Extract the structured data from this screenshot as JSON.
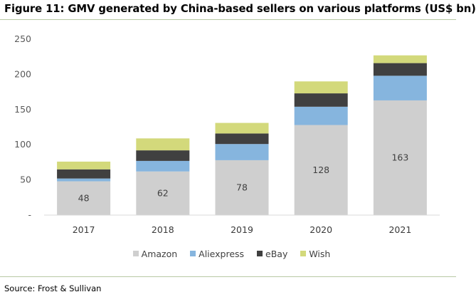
{
  "title": "Figure 11: GMV generated by China-based sellers on various platforms (US$ bn)",
  "source": "Source: Frost & Sullivan",
  "colors": {
    "Amazon": "#cfcfcf",
    "Aliexpress": "#86b5de",
    "eBay": "#404040",
    "Wish": "#d3d97b"
  },
  "chart_data": {
    "type": "bar",
    "stacked": true,
    "categories": [
      "2017",
      "2018",
      "2019",
      "2020",
      "2021"
    ],
    "series": [
      {
        "name": "Amazon",
        "values": [
          48,
          62,
          78,
          128,
          163
        ]
      },
      {
        "name": "Aliexpress",
        "values": [
          4,
          15,
          23,
          26,
          35
        ]
      },
      {
        "name": "eBay",
        "values": [
          13,
          15,
          15,
          19,
          18
        ]
      },
      {
        "name": "Wish",
        "values": [
          11,
          17,
          15,
          17,
          11
        ]
      }
    ],
    "data_labels": {
      "series": "Amazon",
      "values": [
        "48",
        "62",
        "78",
        "128",
        "163"
      ]
    },
    "yticks": [
      "-",
      "50",
      "100",
      "150",
      "200",
      "250"
    ],
    "ylim": [
      0,
      250
    ],
    "title": "Figure 11: GMV generated by China-based sellers on various platforms (US$ bn)",
    "xlabel": "",
    "ylabel": "",
    "legend": [
      "Amazon",
      "Aliexpress",
      "eBay",
      "Wish"
    ],
    "legend_position": "bottom",
    "grid": false
  }
}
